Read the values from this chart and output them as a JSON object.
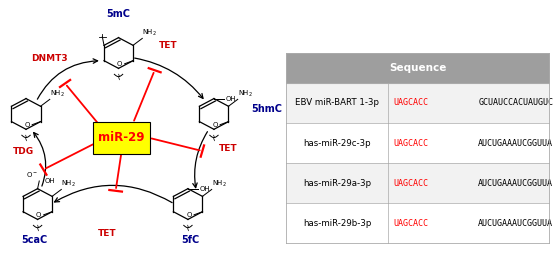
{
  "table_header": "Sequence",
  "table_rows": [
    {
      "label": "EBV miR-BART 1-3p",
      "seed": "UAGCACC",
      "rest": "GCUAUCCACUAUGUC"
    },
    {
      "label": "has-miR-29c-3p",
      "seed": "UAGCACC",
      "rest": "AUCUGAAAUCGGUUA"
    },
    {
      "label": "has-miR-29a-3p",
      "seed": "UAGCACC",
      "rest": "AUCUGAAAUCGGUUA"
    },
    {
      "label": "has-miR-29b-3p",
      "seed": "UAGCACC",
      "rest": "AUCUGAAAUCGGUUA"
    }
  ],
  "header_bg": "#9e9e9e",
  "header_fg": "#ffffff",
  "seed_color": "#ff0000",
  "rest_color": "#000000",
  "label_color": "#000000",
  "table_border_color": "#aaaaaa",
  "mir29_box_bg": "#ffff00",
  "mir29_box_text": "miR-29",
  "mir29_text_color": "#ff0000",
  "node_color": "#00008B",
  "enzyme_color": "#cc0000",
  "arrow_color": "#000000",
  "inhibit_color": "#ff0000",
  "figsize": [
    5.56,
    2.65
  ],
  "dpi": 100
}
